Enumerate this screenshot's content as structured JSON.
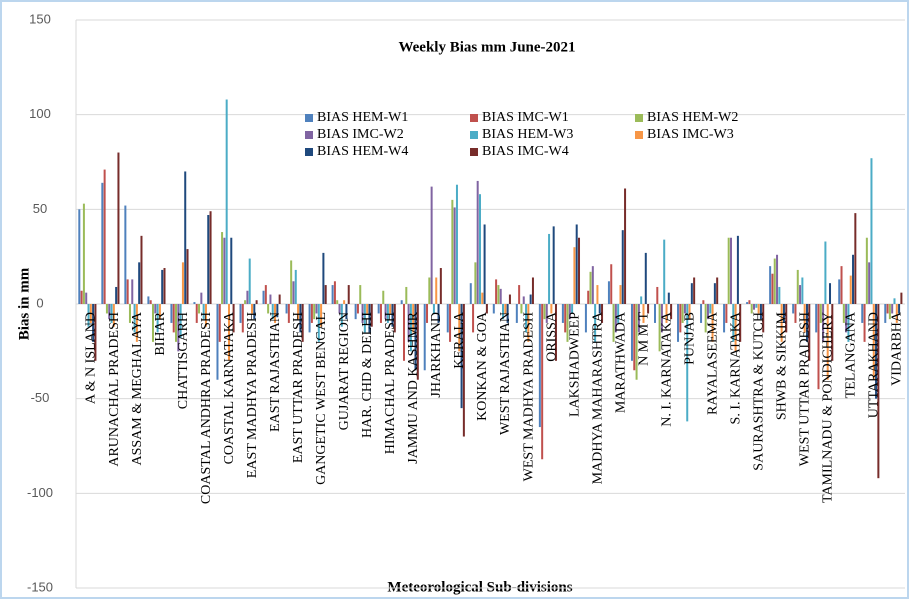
{
  "chart_data": {
    "type": "bar",
    "title": "Weekly Bias mm June-2021",
    "y_label": "Bias in mm",
    "x_label": "Meteorological Sub-divisions",
    "categories": [
      "A & N ISLAND",
      "ARUNACHAL PRADESH",
      "ASSAM & MEGHALAYA",
      "BIHAR",
      "CHATTISGARH",
      "COASTAL ANDHRA PRADESH",
      "COASTAL KARNATAKA",
      "EAST MADHYA PRADESH",
      "EAST RAJASTHAN",
      "EAST UTTAR PRADESH",
      "GANGETIC WEST BENGAL",
      "GUJARAT REGION",
      "HAR. CHD & DELHI",
      "HIMACHAL PRADESH",
      "JAMMU AND KASHMIR",
      "JHARKHAND",
      "KERALA",
      "KONKAN & GOA",
      "WEST RAJASTHAN",
      "WEST MADHYA PRADESH",
      "ORISSA",
      "LAKSHADWEEP",
      "MADHYA MAHARASHTRA",
      "MARATHWADA",
      "N M M T",
      "N. I. KARNATAKA",
      "PUNJAB",
      "RAYALASEEMA",
      "S. I. KARNATAKA",
      "SAURASHTRA & KUTCH",
      "SHWB & SIKKIM",
      "WEST UTTAR PRADESH",
      "TAMILNADU & PONDICHERY",
      "TELANGANA",
      "UTTARAKHAND",
      "VIDARBHA"
    ],
    "series": [
      {
        "name": "BIAS HEM-W1",
        "color": "#4f81bd",
        "values": [
          50,
          64,
          52,
          4,
          -10,
          1,
          -40,
          -10,
          7,
          -5,
          -15,
          10,
          -8,
          -5,
          2,
          -35,
          -15,
          11,
          -5,
          -10,
          -65,
          -10,
          -15,
          12,
          -30,
          -10,
          -20,
          -10,
          -15,
          1,
          20,
          -5,
          -15,
          13,
          -10,
          -10
        ]
      },
      {
        "name": "BIAS IMC-W1",
        "color": "#c0504d",
        "values": [
          7,
          71,
          13,
          2,
          -15,
          -10,
          -20,
          -15,
          10,
          -10,
          -10,
          12,
          -5,
          -10,
          -30,
          -10,
          -20,
          -15,
          13,
          10,
          -82,
          -15,
          7,
          21,
          -35,
          9,
          -15,
          2,
          -10,
          2,
          16,
          -10,
          -45,
          20,
          -20,
          -5
        ]
      },
      {
        "name": "BIAS HEM-W2",
        "color": "#9bbb59",
        "values": [
          53,
          -5,
          -10,
          -20,
          -20,
          -5,
          38,
          2,
          -5,
          23,
          -8,
          2,
          10,
          7,
          9,
          14,
          55,
          22,
          10,
          -5,
          -8,
          -20,
          17,
          -20,
          -40,
          -25,
          -10,
          -15,
          35,
          -5,
          24,
          18,
          -10,
          -10,
          35,
          -8
        ]
      },
      {
        "name": "BIAS IMC-W2",
        "color": "#8064a2",
        "values": [
          6,
          -8,
          13,
          -5,
          -25,
          6,
          35,
          7,
          5,
          12,
          -5,
          -5,
          -10,
          -8,
          -20,
          62,
          51,
          65,
          8,
          4,
          -10,
          -8,
          20,
          -15,
          -15,
          -15,
          -5,
          -8,
          35,
          -3,
          26,
          10,
          -20,
          -15,
          22,
          -5
        ]
      },
      {
        "name": "BIAS HEM-W3",
        "color": "#4bacc6",
        "values": [
          -12,
          -10,
          -15,
          -15,
          -18,
          -8,
          108,
          24,
          -8,
          18,
          -20,
          -12,
          -15,
          -10,
          -25,
          -5,
          63,
          58,
          -8,
          -15,
          37,
          -5,
          -20,
          -10,
          4,
          34,
          -62,
          -5,
          -20,
          -2,
          9,
          14,
          33,
          -20,
          77,
          3
        ]
      },
      {
        "name": "BIAS IMC-W3",
        "color": "#f79646",
        "values": [
          -10,
          -12,
          -20,
          -8,
          22,
          -12,
          -30,
          -5,
          -10,
          -8,
          -12,
          2,
          -5,
          -5,
          -15,
          14,
          -25,
          6,
          -5,
          -20,
          -5,
          30,
          10,
          10,
          -10,
          -10,
          -8,
          -20,
          -25,
          -5,
          -20,
          -15,
          -40,
          15,
          -40,
          -10
        ]
      },
      {
        "name": "BIAS HEM-W4",
        "color": "#1f497d",
        "values": [
          -20,
          9,
          22,
          18,
          70,
          47,
          35,
          -8,
          -7,
          -15,
          27,
          -8,
          -15,
          -12,
          -35,
          -10,
          -55,
          42,
          -10,
          5,
          41,
          42,
          -5,
          39,
          27,
          6,
          11,
          11,
          36,
          -8,
          -10,
          -20,
          11,
          26,
          -50,
          -5
        ]
      },
      {
        "name": "BIAS IMC-W4",
        "color": "#772c2a",
        "values": [
          -30,
          80,
          36,
          19,
          29,
          49,
          -15,
          2,
          5,
          -20,
          10,
          10,
          -12,
          -15,
          -40,
          19,
          -70,
          -5,
          5,
          14,
          -30,
          35,
          -10,
          61,
          -5,
          -8,
          14,
          14,
          -20,
          -15,
          -15,
          -30,
          -30,
          48,
          -92,
          6
        ]
      }
    ],
    "ylim": [
      -150,
      150
    ],
    "yticks": [
      -150,
      -100,
      -50,
      0,
      50,
      100,
      150
    ],
    "grid": true,
    "legend": "top",
    "legend_columns": 3
  }
}
